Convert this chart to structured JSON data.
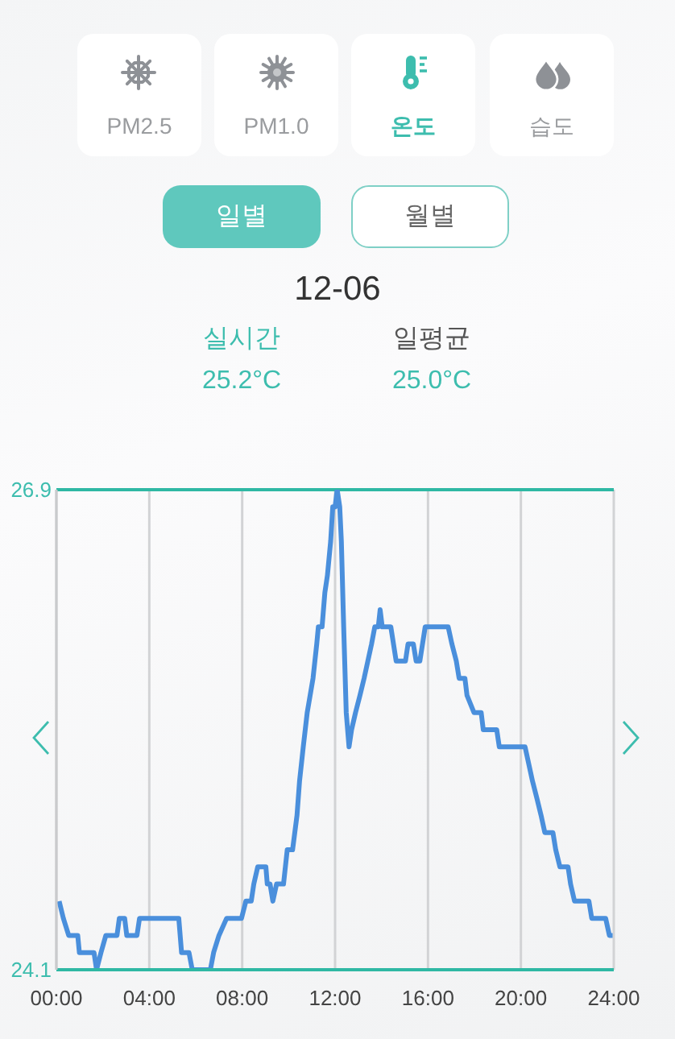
{
  "chart_data": {
    "type": "line",
    "title": "12-06",
    "annotations": [
      "PM2.5",
      "PM1.0",
      "온도",
      "습도",
      "일별",
      "월별",
      "실시간",
      "25.2°C",
      "일평균",
      "25.0°C"
    ],
    "x": [
      0.12,
      0.3,
      0.53,
      0.92,
      0.99,
      1.62,
      1.73,
      1.92,
      2.13,
      2.61,
      2.71,
      2.94,
      3.03,
      3.47,
      3.58,
      5.27,
      5.39,
      5.71,
      5.85,
      6.63,
      6.77,
      7.0,
      7.33,
      7.97,
      8.16,
      8.39,
      8.5,
      8.67,
      9.02,
      9.08,
      9.2,
      9.32,
      9.48,
      9.78,
      9.94,
      10.17,
      10.36,
      10.47,
      10.63,
      10.8,
      11.05,
      11.21,
      11.28,
      11.44,
      11.56,
      11.67,
      11.81,
      11.9,
      12.0,
      12.09,
      12.2,
      12.27,
      12.37,
      12.48,
      12.6,
      12.71,
      12.88,
      13.07,
      13.25,
      13.41,
      13.57,
      13.71,
      13.86,
      13.94,
      14.03,
      14.4,
      14.63,
      15.03,
      15.14,
      15.37,
      15.49,
      15.65,
      15.88,
      16.87,
      17.03,
      17.22,
      17.34,
      17.59,
      17.68,
      17.98,
      18.29,
      18.38,
      18.96,
      19.07,
      20.18,
      20.34,
      20.5,
      20.69,
      20.87,
      21.03,
      21.38,
      21.5,
      21.68,
      22.03,
      22.14,
      22.31,
      22.93,
      23.05,
      23.65,
      23.81,
      23.95
    ],
    "values": [
      24.5,
      24.4,
      24.3,
      24.3,
      24.2,
      24.2,
      24.1,
      24.2,
      24.3,
      24.3,
      24.4,
      24.4,
      24.3,
      24.3,
      24.4,
      24.4,
      24.2,
      24.2,
      24.1,
      24.1,
      24.2,
      24.3,
      24.4,
      24.4,
      24.5,
      24.5,
      24.6,
      24.7,
      24.7,
      24.6,
      24.6,
      24.5,
      24.6,
      24.6,
      24.8,
      24.8,
      25.0,
      25.2,
      25.4,
      25.6,
      25.8,
      26.0,
      26.1,
      26.1,
      26.3,
      26.4,
      26.6,
      26.8,
      26.8,
      26.9,
      26.8,
      26.6,
      26.1,
      25.6,
      25.4,
      25.5,
      25.6,
      25.7,
      25.8,
      25.9,
      26.0,
      26.1,
      26.1,
      26.2,
      26.1,
      26.1,
      25.9,
      25.9,
      26.0,
      26.0,
      25.9,
      25.9,
      26.1,
      26.1,
      26.0,
      25.9,
      25.8,
      25.8,
      25.7,
      25.6,
      25.6,
      25.5,
      25.5,
      25.4,
      25.4,
      25.3,
      25.2,
      25.1,
      25.0,
      24.9,
      24.9,
      24.8,
      24.7,
      24.7,
      24.6,
      24.5,
      24.5,
      24.4,
      24.4,
      24.3,
      24.3
    ],
    "color": "#4a8fdc",
    "xlim": [
      0,
      24
    ],
    "xticks": [
      {
        "value": 0,
        "label": "00:00"
      },
      {
        "value": 4,
        "label": "04:00"
      },
      {
        "value": 8,
        "label": "08:00"
      },
      {
        "value": 12,
        "label": "12:00"
      },
      {
        "value": 16,
        "label": "16:00"
      },
      {
        "value": 20,
        "label": "20:00"
      },
      {
        "value": 24,
        "label": "24:00"
      }
    ],
    "ylim": [
      24.1,
      26.9
    ],
    "yticks": [
      24.1,
      26.9
    ],
    "grid": true
  }
}
